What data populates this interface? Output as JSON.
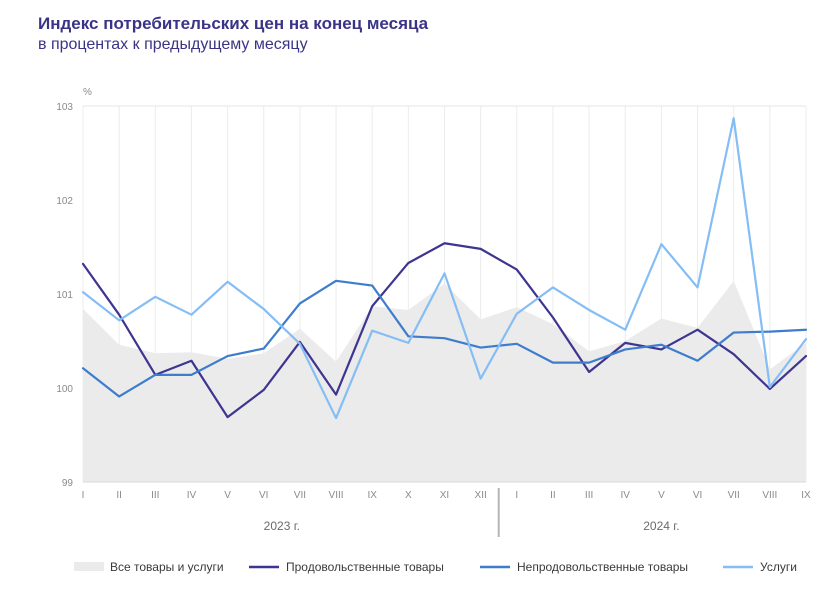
{
  "chart_data": {
    "type": "line",
    "title": "Индекс потребительских цен на конец месяца",
    "subtitle": "в процентах к предыдущему месяцу",
    "ylabel": "%",
    "ylim": [
      99,
      103
    ],
    "yticks": [
      99,
      100,
      101,
      102,
      103
    ],
    "categories": [
      "I",
      "II",
      "III",
      "IV",
      "V",
      "VI",
      "VII",
      "VIII",
      "IX",
      "X",
      "XI",
      "XII",
      "I",
      "II",
      "III",
      "IV",
      "V",
      "VI",
      "VII",
      "VIII",
      "IX"
    ],
    "years": [
      {
        "label": "2023 г.",
        "start": 0,
        "end": 11
      },
      {
        "label": "2024 г.",
        "start": 12,
        "end": 20
      }
    ],
    "grid": "vertical",
    "legend": "bottom",
    "series": [
      {
        "name": "Все товары и услуги",
        "kind": "area",
        "color": "#ebebeb",
        "values": [
          100.84,
          100.46,
          100.37,
          100.38,
          100.31,
          100.37,
          100.63,
          100.28,
          100.87,
          100.83,
          101.11,
          100.73,
          100.86,
          100.68,
          100.39,
          100.5,
          100.74,
          100.64,
          101.14,
          100.2,
          100.48
        ]
      },
      {
        "name": "Продовольственные товары",
        "kind": "line",
        "color": "#3d3590",
        "values": [
          101.32,
          100.78,
          100.14,
          100.29,
          99.69,
          99.98,
          100.49,
          99.93,
          100.87,
          101.33,
          101.54,
          101.48,
          101.26,
          100.75,
          100.17,
          100.48,
          100.41,
          100.62,
          100.36,
          99.99,
          100.34
        ]
      },
      {
        "name": "Непродовольственные товары",
        "kind": "line",
        "color": "#3e7ccd",
        "values": [
          100.21,
          99.91,
          100.14,
          100.14,
          100.34,
          100.42,
          100.9,
          101.14,
          101.09,
          100.55,
          100.53,
          100.43,
          100.47,
          100.27,
          100.27,
          100.41,
          100.46,
          100.29,
          100.59,
          100.6,
          100.62
        ]
      },
      {
        "name": "Услуги",
        "kind": "line",
        "color": "#85bdf5",
        "values": [
          101.02,
          100.72,
          100.97,
          100.78,
          101.13,
          100.84,
          100.47,
          99.68,
          100.61,
          100.48,
          101.22,
          100.1,
          100.79,
          101.07,
          100.83,
          100.62,
          101.53,
          101.07,
          102.87,
          100.01,
          100.52
        ]
      }
    ]
  }
}
